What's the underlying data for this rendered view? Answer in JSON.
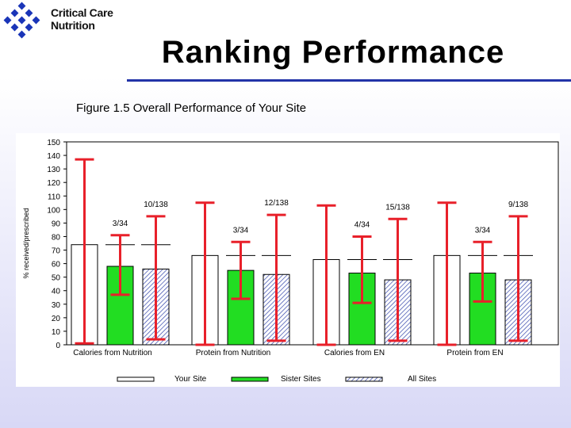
{
  "header": {
    "logo_line1": "Critical Care",
    "logo_line2": "Nutrition",
    "title": "Ranking Performance"
  },
  "caption": "Figure 1.5 Overall Performance of Your Site",
  "colors": {
    "logo": "#1a35b8",
    "rule": "#2233a8",
    "error_bar": "#e8202a",
    "sister_fill": "#22dd22",
    "all_sites_hatch": "#3344aa"
  },
  "chart_data": {
    "type": "bar",
    "ylabel": "% received/prescribed",
    "ylim": [
      0,
      150
    ],
    "yticks": [
      0,
      10,
      20,
      30,
      40,
      50,
      60,
      70,
      80,
      90,
      100,
      110,
      120,
      130,
      140,
      150
    ],
    "categories": [
      "Calories from Nutrition",
      "Protein from Nutrition",
      "Calories from EN",
      "Protein from EN"
    ],
    "series": [
      {
        "name": "Your Site",
        "values": [
          74,
          66,
          63,
          66
        ],
        "err_low": [
          1,
          0,
          0,
          0
        ],
        "err_high": [
          137,
          105,
          103,
          105
        ]
      },
      {
        "name": "Sister Sites",
        "values": [
          58,
          55,
          53,
          53
        ],
        "err_low": [
          37,
          34,
          31,
          32
        ],
        "err_high": [
          81,
          76,
          80,
          76
        ]
      },
      {
        "name": "All Sites",
        "values": [
          56,
          52,
          48,
          48
        ],
        "err_low": [
          4,
          3,
          3,
          3
        ],
        "err_high": [
          95,
          96,
          93,
          95
        ]
      }
    ],
    "rank_labels": {
      "sister": [
        "3/34",
        "3/34",
        "4/34",
        "3/34"
      ],
      "all": [
        "10/138",
        "12/138",
        "15/138",
        "9/138"
      ]
    },
    "grid": false,
    "legend": "bottom"
  }
}
